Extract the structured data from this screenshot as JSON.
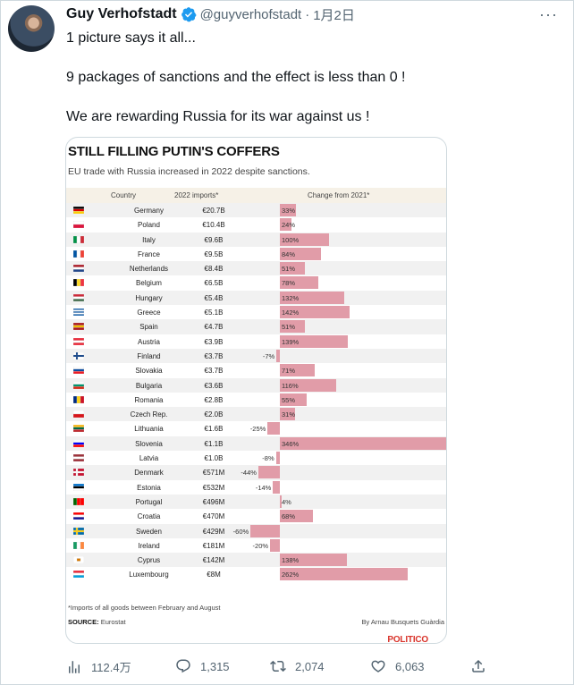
{
  "author": {
    "name": "Guy Verhofstadt",
    "handle": "@guyverhofstadt",
    "separator": "·",
    "date": "1月2日"
  },
  "more_icon": "more-icon",
  "tweet": {
    "line1": "1 picture says it all...",
    "line2": "9 packages of sanctions and the effect is less than 0 !",
    "line3": "We are rewarding Russia for its war against us !"
  },
  "chart_data": {
    "type": "table",
    "title": "STILL FILLING PUTIN'S COFFERS",
    "subtitle": "EU trade with Russia increased in 2022 despite sanctions.",
    "columns": [
      "Country",
      "2022 imports*",
      "Change from 2021*"
    ],
    "rows": [
      {
        "country": "Germany",
        "imports": "€20.7B",
        "change": 33,
        "label": "33%"
      },
      {
        "country": "Poland",
        "imports": "€10.4B",
        "change": 24,
        "label": "24%"
      },
      {
        "country": "Italy",
        "imports": "€9.6B",
        "change": 100,
        "label": "100%"
      },
      {
        "country": "France",
        "imports": "€9.5B",
        "change": 84,
        "label": "84%"
      },
      {
        "country": "Netherlands",
        "imports": "€8.4B",
        "change": 51,
        "label": "51%"
      },
      {
        "country": "Belgium",
        "imports": "€6.5B",
        "change": 78,
        "label": "78%"
      },
      {
        "country": "Hungary",
        "imports": "€5.4B",
        "change": 132,
        "label": "132%"
      },
      {
        "country": "Greece",
        "imports": "€5.1B",
        "change": 142,
        "label": "142%"
      },
      {
        "country": "Spain",
        "imports": "€4.7B",
        "change": 51,
        "label": "51%"
      },
      {
        "country": "Austria",
        "imports": "€3.9B",
        "change": 139,
        "label": "139%"
      },
      {
        "country": "Finland",
        "imports": "€3.7B",
        "change": -7,
        "label": "-7%"
      },
      {
        "country": "Slovakia",
        "imports": "€3.7B",
        "change": 71,
        "label": "71%"
      },
      {
        "country": "Bulgaria",
        "imports": "€3.6B",
        "change": 116,
        "label": "116%"
      },
      {
        "country": "Romania",
        "imports": "€2.8B",
        "change": 55,
        "label": "55%"
      },
      {
        "country": "Czech Rep.",
        "imports": "€2.0B",
        "change": 31,
        "label": "31%"
      },
      {
        "country": "Lithuania",
        "imports": "€1.6B",
        "change": -25,
        "label": "-25%"
      },
      {
        "country": "Slovenia",
        "imports": "€1.1B",
        "change": 346,
        "label": "346%"
      },
      {
        "country": "Latvia",
        "imports": "€1.0B",
        "change": -8,
        "label": "-8%"
      },
      {
        "country": "Denmark",
        "imports": "€571M",
        "change": -44,
        "label": "-44%"
      },
      {
        "country": "Estonia",
        "imports": "€532M",
        "change": -14,
        "label": "-14%"
      },
      {
        "country": "Portugal",
        "imports": "€496M",
        "change": 4,
        "label": "4%"
      },
      {
        "country": "Croatia",
        "imports": "€470M",
        "change": 68,
        "label": "68%"
      },
      {
        "country": "Sweden",
        "imports": "€429M",
        "change": -60,
        "label": "-60%"
      },
      {
        "country": "Ireland",
        "imports": "€181M",
        "change": -20,
        "label": "-20%"
      },
      {
        "country": "Cyprus",
        "imports": "€142M",
        "change": 138,
        "label": "138%"
      },
      {
        "country": "Luxembourg",
        "imports": "€8M",
        "change": 262,
        "label": "262%"
      }
    ],
    "bar_color": "#e19ca8",
    "footnote": "*Imports of all goods between February and August",
    "source_label": "SOURCE:",
    "source": "Eurostat",
    "byline": "By Arnau Busquets Guàrdia",
    "brand": "POLITICO"
  },
  "flags": {
    "Germany": [
      "#000000",
      "#dd0000",
      "#ffce00",
      "h"
    ],
    "Poland": [
      "#ffffff",
      "#dc143c",
      "h2"
    ],
    "Italy": [
      "#009246",
      "#ffffff",
      "#ce2b37",
      "v"
    ],
    "France": [
      "#0055a4",
      "#ffffff",
      "#ef4135",
      "v"
    ],
    "Netherlands": [
      "#ae1c28",
      "#ffffff",
      "#21468b",
      "h"
    ],
    "Belgium": [
      "#000000",
      "#fdda24",
      "#ef3340",
      "v"
    ],
    "Hungary": [
      "#ce2939",
      "#ffffff",
      "#477050",
      "h"
    ],
    "Greece": [
      "#0d5eaf",
      "#ffffff",
      "h2s"
    ],
    "Spain": [
      "#aa151b",
      "#f1bf00",
      "#aa151b",
      "h"
    ],
    "Austria": [
      "#ed2939",
      "#ffffff",
      "#ed2939",
      "h"
    ],
    "Finland": [
      "#ffffff",
      "#003580",
      "x"
    ],
    "Slovakia": [
      "#ffffff",
      "#0b4ea2",
      "#ee1c25",
      "h"
    ],
    "Bulgaria": [
      "#ffffff",
      "#00966e",
      "#d62612",
      "h"
    ],
    "Romania": [
      "#002b7f",
      "#fcd116",
      "#ce1126",
      "v"
    ],
    "Czech Rep.": [
      "#ffffff",
      "#d7141a",
      "h2"
    ],
    "Lithuania": [
      "#fdb913",
      "#006a44",
      "#c1272d",
      "h"
    ],
    "Slovenia": [
      "#ffffff",
      "#0000ff",
      "#ff0000",
      "h"
    ],
    "Latvia": [
      "#9e3039",
      "#ffffff",
      "#9e3039",
      "h"
    ],
    "Denmark": [
      "#c8102e",
      "#ffffff",
      "x"
    ],
    "Estonia": [
      "#0072ce",
      "#000000",
      "#ffffff",
      "h"
    ],
    "Portugal": [
      "#006600",
      "#ff0000",
      "#ff0000",
      "v"
    ],
    "Croatia": [
      "#ff0000",
      "#ffffff",
      "#171796",
      "h"
    ],
    "Sweden": [
      "#006aa7",
      "#fecc00",
      "x"
    ],
    "Ireland": [
      "#169b62",
      "#ffffff",
      "#ff883e",
      "v"
    ],
    "Cyprus": [
      "#ffffff",
      "#d57800",
      "c"
    ],
    "Luxembourg": [
      "#ed2939",
      "#ffffff",
      "#00a1de",
      "h"
    ]
  },
  "actions": {
    "views": "112.4万",
    "replies": "1,315",
    "retweets": "2,074",
    "likes": "6,063"
  },
  "colors": {
    "verified": "#1d9bf0",
    "text_secondary": "#536471",
    "brand_red": "#d9342b"
  }
}
